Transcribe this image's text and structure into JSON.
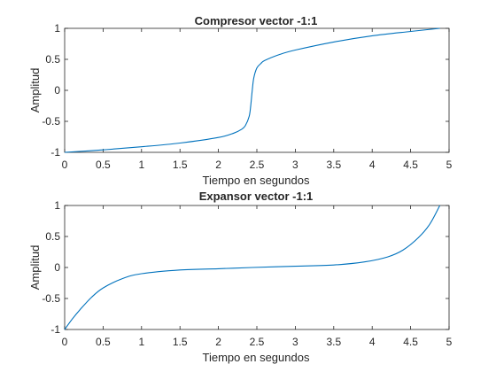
{
  "chart_data": [
    {
      "type": "line",
      "title": "Compresor vector -1:1",
      "xlabel": "Tiempo en segundos",
      "ylabel": "Amplitud",
      "xlim": [
        0,
        5
      ],
      "ylim": [
        -1,
        1
      ],
      "xticks": [
        "0",
        "0.5",
        "1",
        "1.5",
        "2",
        "2.5",
        "3",
        "3.5",
        "4",
        "4.5",
        "5"
      ],
      "yticks": [
        "-1",
        "-0.5",
        "0",
        "0.5",
        "1"
      ],
      "grid": false,
      "line_color": "#0072bd",
      "x": [
        0,
        0.5,
        1,
        1.5,
        2,
        2.2,
        2.3,
        2.35,
        2.4,
        2.42,
        2.44,
        2.46,
        2.5,
        2.55,
        2.6,
        2.8,
        3,
        3.5,
        4,
        4.5,
        4.88
      ],
      "y": [
        -1,
        -0.96,
        -0.91,
        -0.85,
        -0.76,
        -0.69,
        -0.63,
        -0.57,
        -0.42,
        -0.25,
        0,
        0.2,
        0.36,
        0.43,
        0.48,
        0.58,
        0.65,
        0.78,
        0.88,
        0.95,
        1
      ]
    },
    {
      "type": "line",
      "title": "Expansor vector -1:1",
      "xlabel": "Tiempo en segundos",
      "ylabel": "Amplitud",
      "xlim": [
        0,
        5
      ],
      "ylim": [
        -1,
        1
      ],
      "xticks": [
        "0",
        "0.5",
        "1",
        "1.5",
        "2",
        "2.5",
        "3",
        "3.5",
        "4",
        "4.5",
        "5"
      ],
      "yticks": [
        "-1",
        "-0.5",
        "0",
        "0.5",
        "1"
      ],
      "grid": false,
      "line_color": "#0072bd",
      "x": [
        0,
        0.1,
        0.2,
        0.35,
        0.5,
        0.75,
        1,
        1.5,
        2,
        2.44,
        3,
        3.5,
        3.9,
        4.2,
        4.4,
        4.6,
        4.75,
        4.88
      ],
      "y": [
        -1,
        -0.83,
        -0.68,
        -0.48,
        -0.33,
        -0.18,
        -0.1,
        -0.04,
        -0.02,
        0,
        0.02,
        0.04,
        0.09,
        0.17,
        0.28,
        0.48,
        0.7,
        1
      ]
    }
  ]
}
